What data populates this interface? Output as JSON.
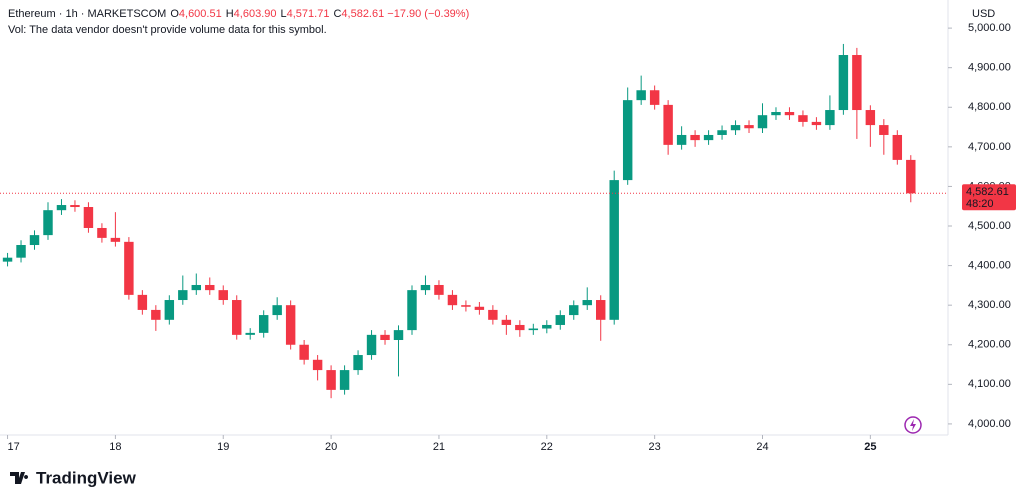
{
  "chart_data": {
    "type": "candlestick",
    "symbol": "Ethereum · 1h · MARKETSCOM",
    "ohlc_legend": [
      {
        "key": "O",
        "value": "4,600.51"
      },
      {
        "key": "H",
        "value": "4,603.90"
      },
      {
        "key": "L",
        "value": "4,571.71"
      },
      {
        "key": "C",
        "value": "4,582.61"
      }
    ],
    "change": "−17.90 (−0.39%)",
    "volume_note": "Vol: The data vendor doesn't provide volume data for this symbol.",
    "currency": "USD",
    "brand": "TradingView",
    "up_color": "#089981",
    "down_color": "#f23645",
    "x": [
      17,
      17.125,
      17.25,
      17.375,
      17.5,
      17.625,
      17.75,
      17.875,
      18,
      18.125,
      18.25,
      18.375,
      18.5,
      18.625,
      18.75,
      18.875,
      19,
      19.125,
      19.25,
      19.375,
      19.5,
      19.625,
      19.75,
      19.875,
      20,
      20.125,
      20.25,
      20.375,
      20.5,
      20.625,
      20.75,
      20.875,
      21,
      21.125,
      21.25,
      21.375,
      21.5,
      21.625,
      21.75,
      21.875,
      22,
      22.125,
      22.25,
      22.375,
      22.5,
      22.625,
      22.75,
      22.875,
      23,
      23.125,
      23.25,
      23.375,
      23.5,
      23.625,
      23.75,
      23.875,
      24,
      24.125,
      24.25,
      24.375,
      24.5,
      24.625,
      24.75,
      24.875,
      25,
      25.125,
      25.25,
      25.375
    ],
    "open": [
      4410,
      4420,
      4452,
      4477,
      4540,
      4553,
      4548,
      4495,
      4470,
      4460,
      4326,
      4288,
      4263,
      4313,
      4338,
      4351,
      4338,
      4313,
      4225,
      4230,
      4275,
      4300,
      4200,
      4162,
      4136,
      4086,
      4136,
      4174,
      4225,
      4212,
      4237,
      4338,
      4351,
      4326,
      4300,
      4296,
      4288,
      4263,
      4250,
      4237,
      4241,
      4250,
      4275,
      4300,
      4313,
      4263,
      4616,
      4818,
      4843,
      4806,
      4705,
      4730,
      4717,
      4730,
      4742,
      4755,
      4747,
      4780,
      4788,
      4780,
      4763,
      4755,
      4793,
      4932,
      4793,
      4755,
      4730,
      4667
    ],
    "high": [
      4432,
      4464,
      4489,
      4560,
      4568,
      4565,
      4560,
      4507,
      4535,
      4472,
      4338,
      4300,
      4325,
      4375,
      4380,
      4370,
      4350,
      4325,
      4242,
      4287,
      4320,
      4312,
      4212,
      4174,
      4148,
      4148,
      4186,
      4237,
      4237,
      4249,
      4350,
      4375,
      4363,
      4338,
      4312,
      4308,
      4300,
      4275,
      4262,
      4253,
      4262,
      4287,
      4312,
      4345,
      4325,
      4640,
      4850,
      4880,
      4855,
      4818,
      4752,
      4742,
      4742,
      4754,
      4767,
      4767,
      4810,
      4800,
      4800,
      4792,
      4775,
      4830,
      4960,
      4950,
      4805,
      4770,
      4742,
      4679
    ],
    "low": [
      4398,
      4408,
      4440,
      4465,
      4528,
      4536,
      4483,
      4458,
      4448,
      4314,
      4276,
      4235,
      4251,
      4301,
      4326,
      4326,
      4301,
      4213,
      4213,
      4218,
      4263,
      4188,
      4150,
      4110,
      4065,
      4074,
      4124,
      4162,
      4200,
      4120,
      4225,
      4326,
      4314,
      4288,
      4284,
      4276,
      4251,
      4225,
      4220,
      4225,
      4229,
      4238,
      4263,
      4288,
      4210,
      4251,
      4604,
      4806,
      4794,
      4680,
      4693,
      4700,
      4705,
      4718,
      4730,
      4735,
      4735,
      4768,
      4768,
      4751,
      4743,
      4743,
      4781,
      4720,
      4700,
      4680,
      4655,
      4560
    ],
    "close": [
      4420,
      4452,
      4477,
      4540,
      4553,
      4548,
      4495,
      4470,
      4460,
      4326,
      4288,
      4263,
      4313,
      4338,
      4351,
      4338,
      4313,
      4225,
      4230,
      4275,
      4300,
      4200,
      4162,
      4136,
      4086,
      4136,
      4174,
      4225,
      4212,
      4237,
      4338,
      4351,
      4326,
      4300,
      4296,
      4288,
      4263,
      4250,
      4237,
      4241,
      4250,
      4275,
      4300,
      4313,
      4263,
      4616,
      4818,
      4843,
      4806,
      4705,
      4730,
      4717,
      4730,
      4742,
      4755,
      4747,
      4780,
      4788,
      4780,
      4763,
      4755,
      4793,
      4932,
      4793,
      4755,
      4730,
      4667,
      4582.61
    ],
    "last_price": {
      "value": 4582.61,
      "label": "4,582.61"
    },
    "countdown": "48:20",
    "xlim": [
      16.93,
      25.72
    ],
    "xticks": [
      17,
      18,
      19,
      20,
      21,
      22,
      23,
      24,
      25
    ],
    "ylim": [
      3972,
      5071
    ],
    "yticks": [
      {
        "value": 4000,
        "label": "4,000.00"
      },
      {
        "value": 4100,
        "label": "4,100.00"
      },
      {
        "value": 4200,
        "label": "4,200.00"
      },
      {
        "value": 4300,
        "label": "4,300.00"
      },
      {
        "value": 4400,
        "label": "4,400.00"
      },
      {
        "value": 4500,
        "label": "4,500.00"
      },
      {
        "value": 4600,
        "label": "4,600.00"
      },
      {
        "value": 4700,
        "label": "4,700.00"
      },
      {
        "value": 4800,
        "label": "4,800.00"
      },
      {
        "value": 4900,
        "label": "4,900.00"
      },
      {
        "value": 5000,
        "label": "5,000.00"
      }
    ]
  }
}
